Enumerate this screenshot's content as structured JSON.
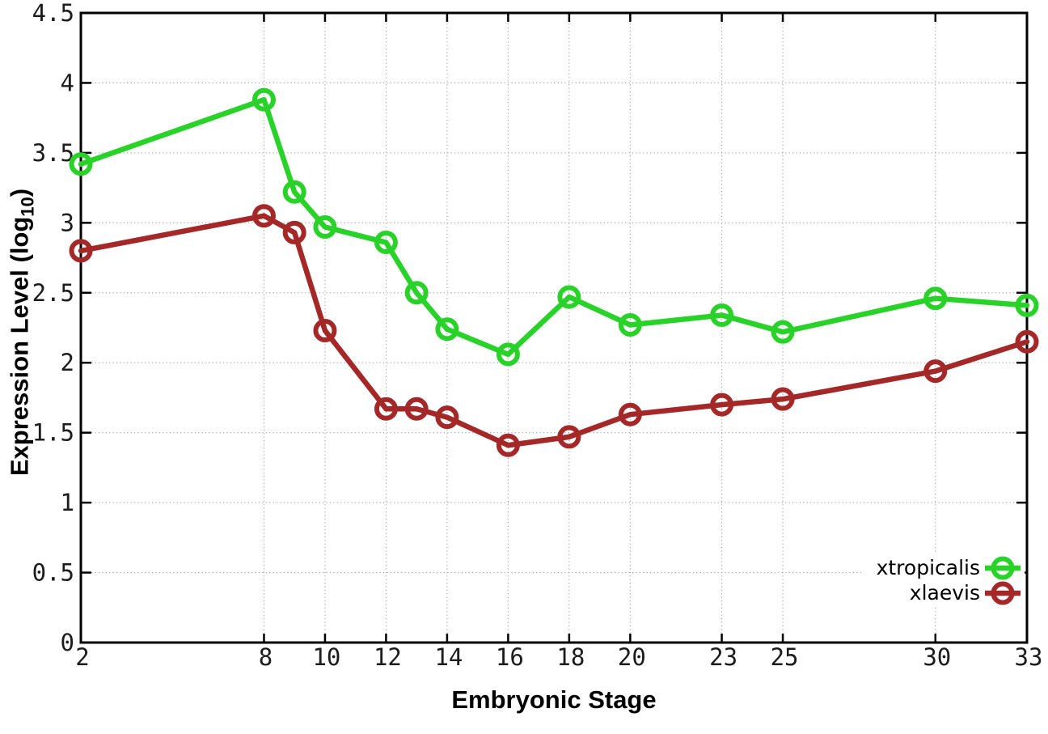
{
  "chart_data": {
    "type": "line",
    "title": "",
    "xlabel": "Embryonic Stage",
    "ylabel": {
      "prefix": "Expression Level (log",
      "sub": "10",
      "suffix": ")"
    },
    "x": [
      2,
      8,
      9,
      10,
      12,
      13,
      14,
      16,
      18,
      20,
      23,
      25,
      30,
      33
    ],
    "series": [
      {
        "name": "xtropicalis",
        "color": "#29d229",
        "values": [
          3.42,
          3.88,
          3.22,
          2.97,
          2.86,
          2.5,
          2.24,
          2.06,
          2.47,
          2.27,
          2.34,
          2.22,
          2.46,
          2.41
        ]
      },
      {
        "name": "xlaevis",
        "color": "#a52828",
        "values": [
          2.8,
          3.05,
          2.93,
          2.23,
          1.67,
          1.67,
          1.61,
          1.41,
          1.47,
          1.63,
          1.7,
          1.74,
          1.94,
          2.15
        ]
      }
    ],
    "xlim": [
      2,
      33
    ],
    "ylim": [
      0,
      4.5
    ],
    "xticks": {
      "values": [
        2,
        8,
        10,
        12,
        14,
        16,
        18,
        20,
        23,
        25,
        30,
        33
      ],
      "labels": [
        "2",
        "8",
        "10",
        "12",
        "14",
        "16",
        "18",
        "20",
        "23",
        "25",
        "30",
        "33"
      ]
    },
    "yticks": {
      "values": [
        0,
        0.5,
        1,
        1.5,
        2,
        2.5,
        3,
        3.5,
        4,
        4.5
      ],
      "labels": [
        "0",
        "0.5",
        "1",
        "1.5",
        "2",
        "2.5",
        "3",
        "3.5",
        "4",
        "4.5"
      ]
    },
    "grid": true,
    "grid_style": "dotted",
    "grid_color": "#a0a0a0",
    "axis_color": "#000000",
    "background": "#ffffff",
    "marker": "open-circle",
    "legend": {
      "position": "bottom-right",
      "entries": [
        "xtropicalis",
        "xlaevis"
      ]
    }
  }
}
